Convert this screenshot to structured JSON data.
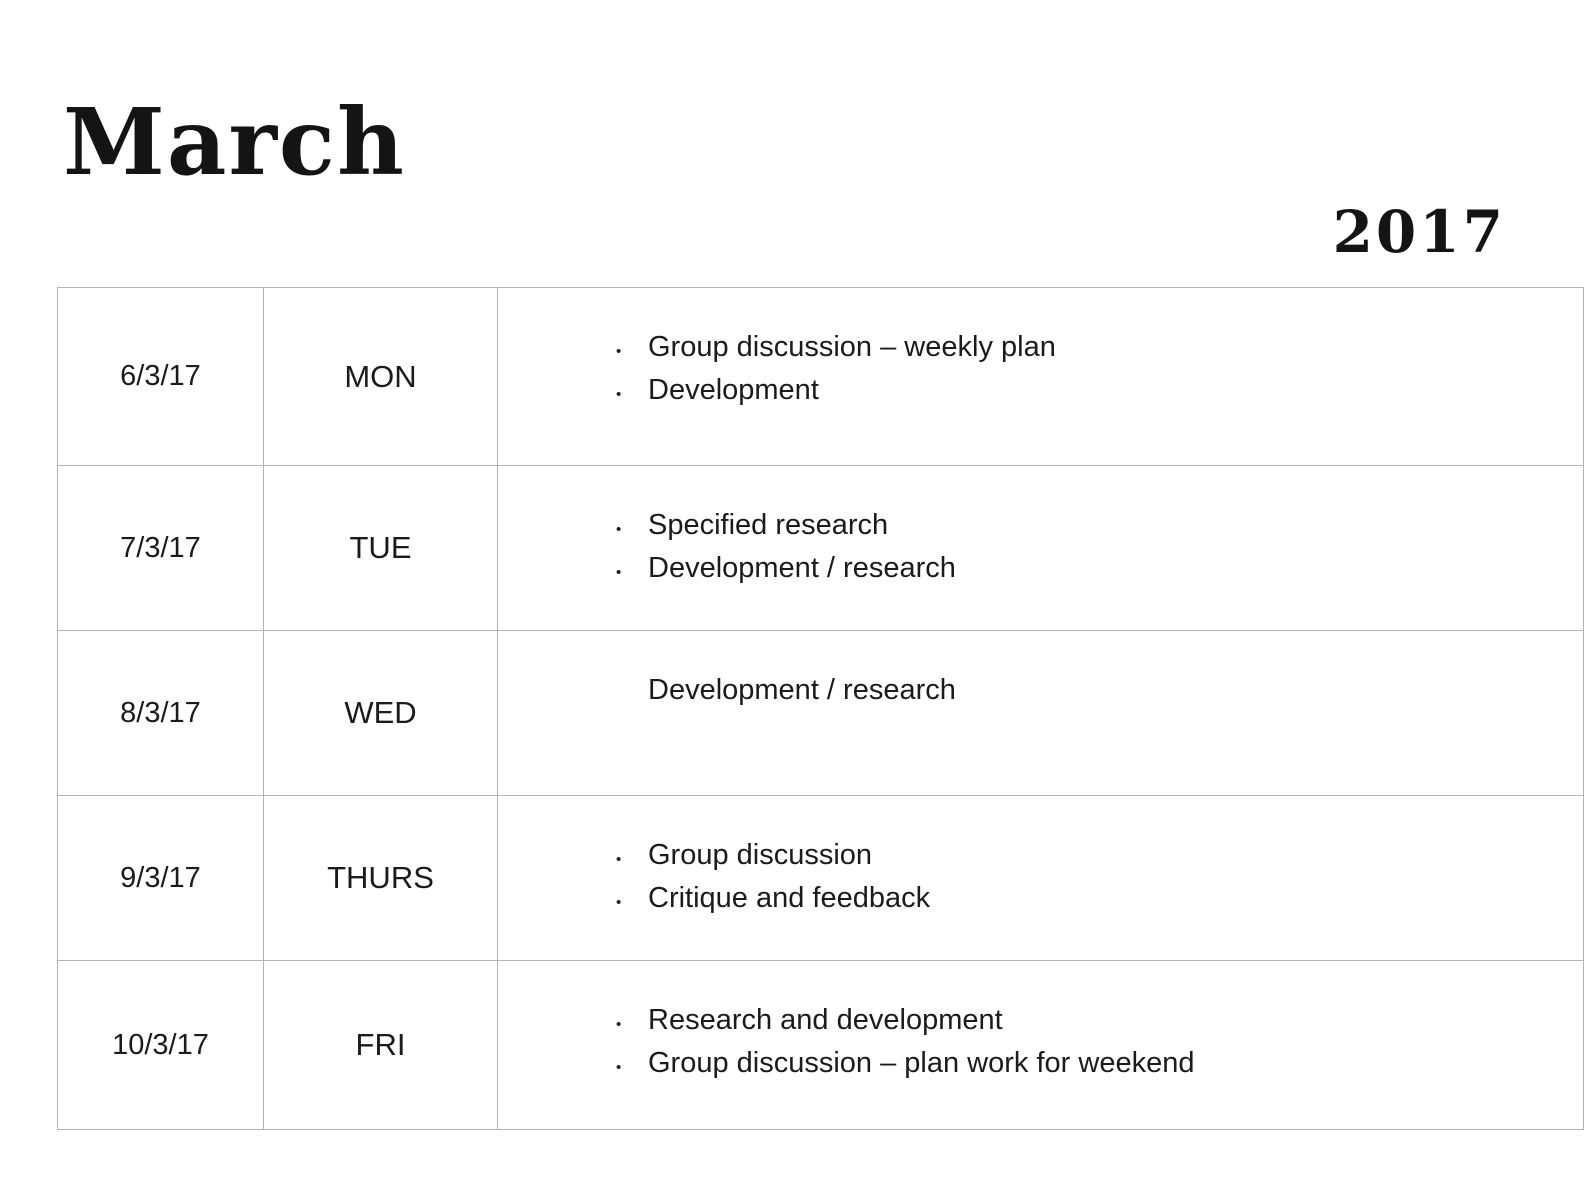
{
  "page": {
    "title": "March",
    "year": "2017"
  },
  "colors": {
    "background": "#ffffff",
    "text": "#1b1b1b",
    "table_border": "#b4b4b4"
  },
  "table": {
    "rows": [
      {
        "date": "6/3/17",
        "day": "MON",
        "items": [
          "Group discussion – weekly plan",
          "Development"
        ]
      },
      {
        "date": "7/3/17",
        "day": "TUE",
        "items": [
          "Specified research",
          "Development / research"
        ]
      },
      {
        "date": "8/3/17",
        "day": "WED",
        "items": [
          "Development / research"
        ]
      },
      {
        "date": "9/3/17",
        "day": "THURS",
        "items": [
          "Group discussion",
          "Critique and feedback"
        ]
      },
      {
        "date": "10/3/17",
        "day": "FRI",
        "items": [
          "Research and development",
          "Group discussion – plan work for weekend"
        ]
      }
    ]
  }
}
